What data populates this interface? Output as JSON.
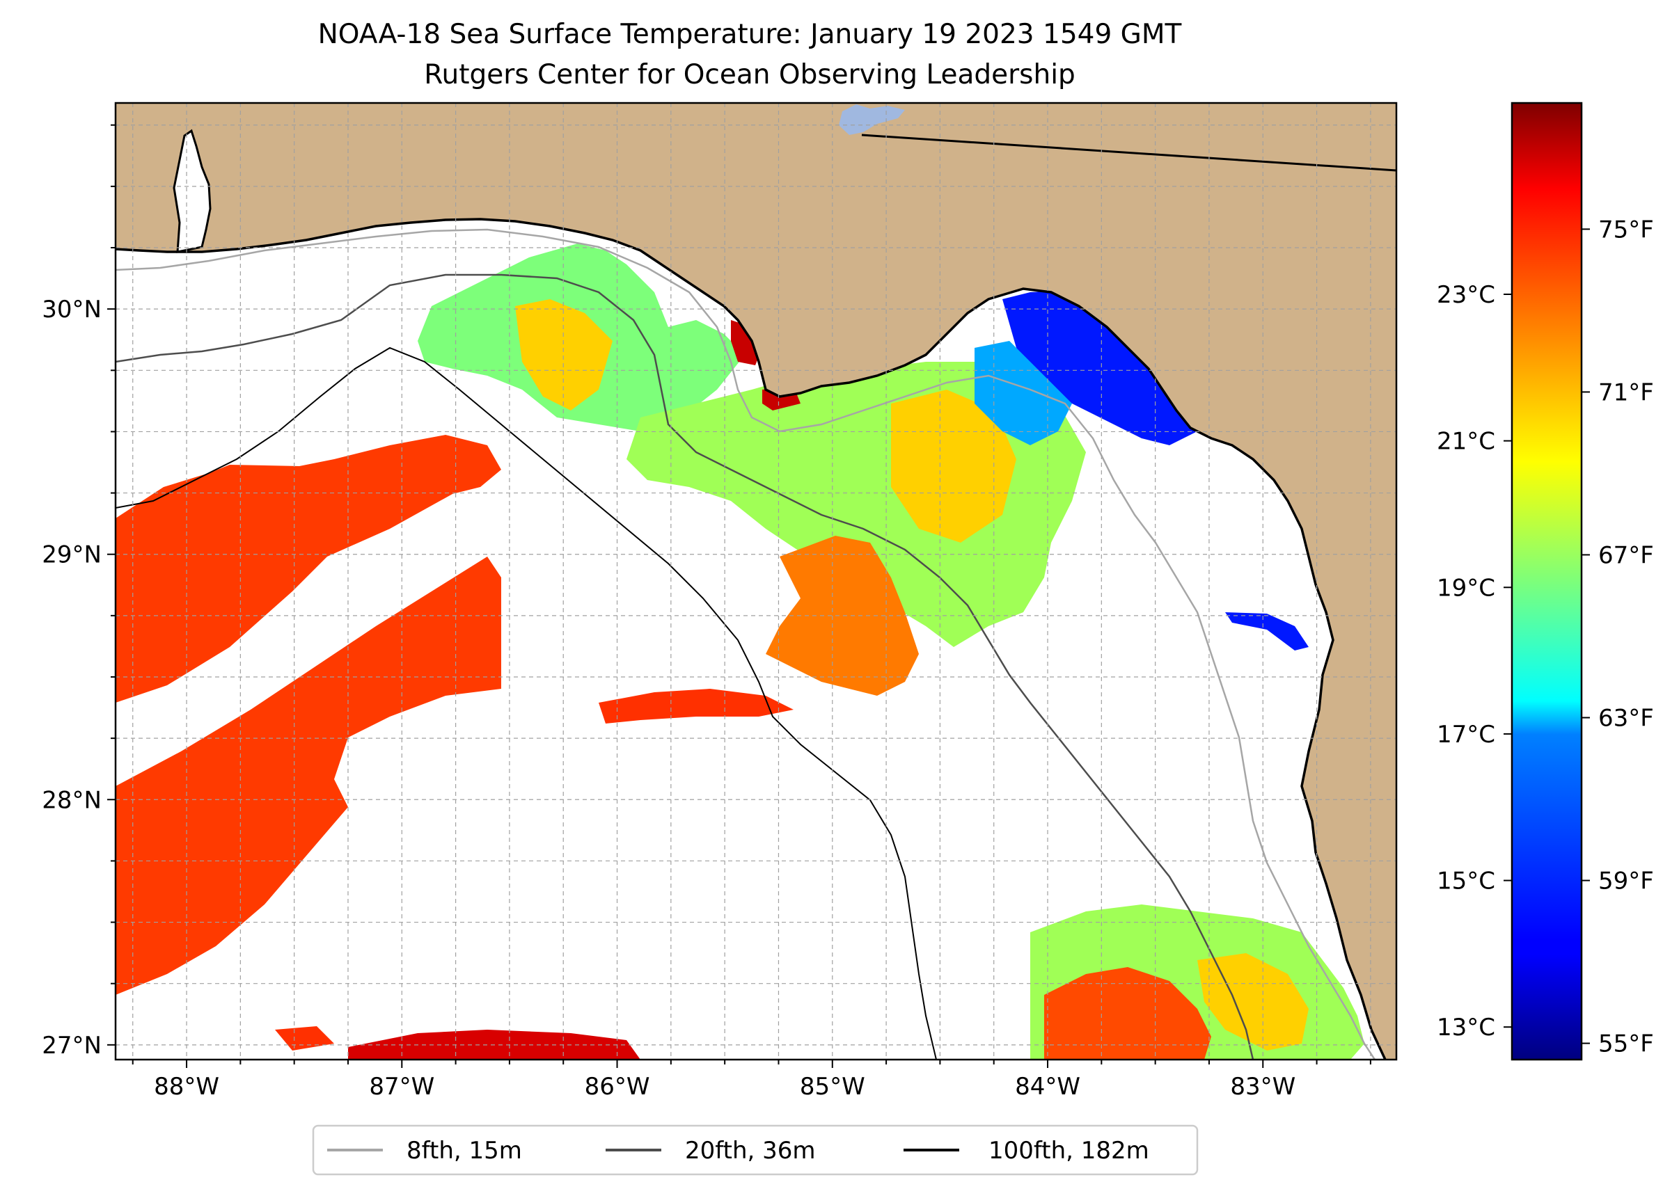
{
  "title": {
    "line1": "NOAA-18 Sea Surface Temperature: January 19 2023 1549 GMT",
    "line2": "Rutgers Center for Ocean Observing Leadership"
  },
  "map": {
    "lon_range": [
      -88.33,
      -82.38
    ],
    "lat_range": [
      26.94,
      30.84
    ],
    "lon_ticks": [
      {
        "value": -88,
        "label": "88°W"
      },
      {
        "value": -87,
        "label": "87°W"
      },
      {
        "value": -86,
        "label": "86°W"
      },
      {
        "value": -85,
        "label": "85°W"
      },
      {
        "value": -84,
        "label": "84°W"
      },
      {
        "value": -83,
        "label": "83°W"
      }
    ],
    "lat_ticks": [
      {
        "value": 27,
        "label": "27°N"
      },
      {
        "value": 28,
        "label": "28°N"
      },
      {
        "value": 29,
        "label": "29°N"
      },
      {
        "value": 30,
        "label": "30°N"
      }
    ],
    "gridlines": "dashed every 0.25°",
    "colors": {
      "land": "#d0b28a",
      "coastline": "#000000",
      "isobath_8fth": "#a6a6a6",
      "isobath_20fth": "#4d4d4d",
      "isobath_100fth": "#000000",
      "lake": "#a0b8e0"
    },
    "sst_patches_degF": [
      {
        "region": "western shelf (west of 100fth)",
        "value": 74.5
      },
      {
        "region": "central shelf north",
        "value": 69
      },
      {
        "region": "Big Bend nearshore",
        "value": 58
      },
      {
        "region": "central shelf south",
        "value": 70
      },
      {
        "region": "southeast shelf",
        "value": 70
      },
      {
        "region": "south edge near 27N",
        "value": 75.5
      }
    ]
  },
  "colorbar": {
    "colormap": "jet",
    "range_degF": [
      54.6,
      78.1
    ],
    "ticks_degF": [
      {
        "value": 55,
        "label": "55°F"
      },
      {
        "value": 59,
        "label": "59°F"
      },
      {
        "value": 63,
        "label": "63°F"
      },
      {
        "value": 67,
        "label": "67°F"
      },
      {
        "value": 71,
        "label": "71°F"
      },
      {
        "value": 75,
        "label": "75°F"
      }
    ],
    "ticks_degC": [
      {
        "value": 13,
        "label": "13°C"
      },
      {
        "value": 15,
        "label": "15°C"
      },
      {
        "value": 17,
        "label": "17°C"
      },
      {
        "value": 19,
        "label": "19°C"
      },
      {
        "value": 21,
        "label": "21°C"
      },
      {
        "value": 23,
        "label": "23°C"
      }
    ]
  },
  "legend": {
    "placement": "below map",
    "items": [
      {
        "label": "8fth, 15m",
        "color": "#a6a6a6"
      },
      {
        "label": "20fth, 36m",
        "color": "#4d4d4d"
      },
      {
        "label": "100fth, 182m",
        "color": "#000000"
      }
    ]
  }
}
